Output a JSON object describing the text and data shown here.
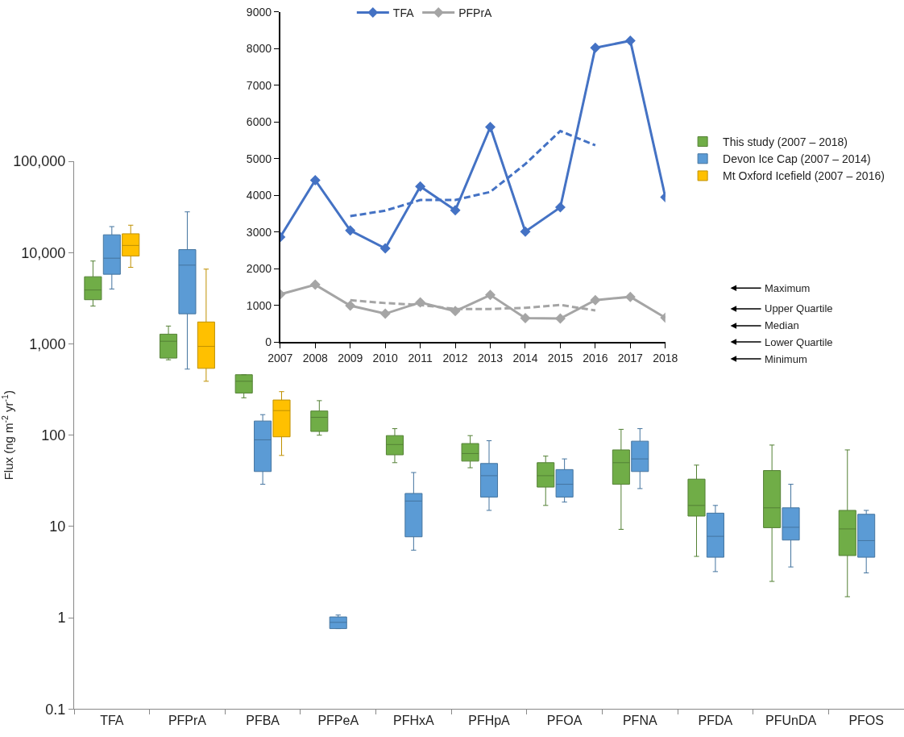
{
  "chart_data": [
    {
      "type": "box",
      "ylabel": "Flux (ng m$^{-2}$ yr$^{-1}$)",
      "log": true,
      "legend": "top right",
      "categories": [
        "TFA",
        "PFPrA",
        "PFBA",
        "PFPeA",
        "PFHxA",
        "PFHpA",
        "PFOA",
        "PFNA",
        "PFDA",
        "PFUnDA",
        "PFOS"
      ],
      "ylim": [
        0.1,
        100000
      ],
      "yticks": [
        {
          "value": 0.1,
          "label": "0.1"
        },
        1,
        10,
        100,
        {
          "value": 1000,
          "label": "1,000"
        },
        {
          "value": 10000,
          "label": "10,000"
        },
        {
          "value": 100000,
          "label": "100,000"
        }
      ],
      "series": [
        {
          "name": "This study (2007 – 2018)",
          "color": "#70ad47",
          "boxes": [
            {
              "low": 2600,
              "q1": 3050,
              "median": 3900,
              "q3": 5450,
              "high": 8100
            },
            {
              "low": 670,
              "q1": 700,
              "median": 1070,
              "q3": 1280,
              "high": 1570
            },
            {
              "low": 257,
              "q1": 290,
              "median": 390,
              "q3": 460,
              "high": 460
            },
            {
              "low": 100,
              "q1": 110,
              "median": 157,
              "q3": 184,
              "high": 239
            },
            {
              "low": 50,
              "q1": 61,
              "median": 79,
              "q3": 99,
              "high": 118
            },
            {
              "low": 44,
              "q1": 52,
              "median": 63,
              "q3": 81,
              "high": 99
            },
            {
              "low": 17,
              "q1": 27,
              "median": 36,
              "q3": 50,
              "high": 59
            },
            {
              "low": 9.3,
              "q1": 29,
              "median": 50,
              "q3": 69,
              "high": 116
            },
            {
              "low": 4.7,
              "q1": 13,
              "median": 17,
              "q3": 33,
              "high": 47
            },
            {
              "low": 2.5,
              "q1": 9.7,
              "median": 16,
              "q3": 41,
              "high": 78
            },
            {
              "low": 1.7,
              "q1": 4.8,
              "median": 9.4,
              "q3": 15,
              "high": 69
            }
          ]
        },
        {
          "name": "Devon Ice Cap (2007 – 2014)",
          "color": "#5b9bd5",
          "boxes": [
            {
              "low": 4000,
              "q1": 5800,
              "median": 8700,
              "q3": 15700,
              "high": 19300
            },
            {
              "low": 530,
              "q1": 2140,
              "median": 7300,
              "q3": 10800,
              "high": 28000
            },
            {
              "low": 29,
              "q1": 40,
              "median": 89,
              "q3": 143,
              "high": 168
            },
            {
              "low": 0.76,
              "q1": 0.76,
              "median": 0.89,
              "q3": 1.02,
              "high": 1.07
            },
            {
              "low": 5.5,
              "q1": 7.7,
              "median": 19,
              "q3": 23,
              "high": 39
            },
            {
              "low": 15,
              "q1": 21,
              "median": 36,
              "q3": 49,
              "high": 87
            },
            {
              "low": 18.5,
              "q1": 21,
              "median": 29,
              "q3": 42,
              "high": 55
            },
            {
              "low": 26,
              "q1": 40,
              "median": 55,
              "q3": 86,
              "high": 118
            },
            {
              "low": 3.2,
              "q1": 4.6,
              "median": 7.8,
              "q3": 14,
              "high": 17
            },
            {
              "low": 3.6,
              "q1": 7.1,
              "median": 9.8,
              "q3": 16,
              "high": 29
            },
            {
              "low": 3.1,
              "q1": 4.6,
              "median": 7,
              "q3": 13.6,
              "high": 15
            }
          ]
        },
        {
          "name": "Mt Oxford Icefield (2007 – 2016)",
          "color": "#ffc000",
          "boxes": [
            {
              "low": 6900,
              "q1": 9200,
              "median": 12000,
              "q3": 16100,
              "high": 20000
            },
            {
              "low": 390,
              "q1": 540,
              "median": 940,
              "q3": 1740,
              "high": 6600
            },
            {
              "low": 60,
              "q1": 96,
              "median": 186,
              "q3": 243,
              "high": 300
            },
            null,
            null,
            null,
            null,
            null,
            null,
            null,
            null
          ]
        }
      ],
      "annotations": [
        "Maximum",
        "Upper Quartile",
        "Median",
        "Lower Quartile",
        "Minimum"
      ]
    },
    {
      "type": "line",
      "legend": "top",
      "marker": "diamond",
      "xlim": [
        2007,
        2018
      ],
      "xticks": [
        2007,
        2008,
        2009,
        2010,
        2011,
        2012,
        2013,
        2014,
        2015,
        2016,
        2017,
        2018
      ],
      "ylim": [
        0,
        9000
      ],
      "yticks": [
        0,
        1000,
        2000,
        3000,
        4000,
        5000,
        6000,
        7000,
        8000,
        9000
      ],
      "x": [
        2007,
        2008,
        2009,
        2010,
        2011,
        2012,
        2013,
        2014,
        2015,
        2016,
        2017,
        2018
      ],
      "series": [
        {
          "name": "TFA",
          "color": "#4472c4",
          "line_style": "solid",
          "values": [
            2860,
            4410,
            3040,
            2550,
            4240,
            3590,
            5860,
            3010,
            3670,
            8020,
            8210,
            3950
          ]
        },
        {
          "name": "PFPrA",
          "color": "#a5a5a5",
          "line_style": "solid",
          "values": [
            1300,
            1560,
            990,
            770,
            1080,
            840,
            1280,
            650,
            640,
            1140,
            1230,
            660
          ]
        },
        {
          "color": "#4472c4",
          "line_style": "dashed",
          "marker": "none",
          "x": [
            2009,
            2010,
            2011,
            2012,
            2013,
            2014,
            2015,
            2016
          ],
          "values": [
            3430,
            3580,
            3870,
            3870,
            4090,
            4850,
            5750,
            5360
          ]
        },
        {
          "color": "#a5a5a5",
          "line_style": "dashed",
          "marker": "none",
          "x": [
            2009,
            2010,
            2011,
            2012,
            2013,
            2014,
            2015,
            2016
          ],
          "values": [
            1140,
            1060,
            1010,
            900,
            900,
            930,
            1010,
            860
          ]
        }
      ]
    }
  ]
}
